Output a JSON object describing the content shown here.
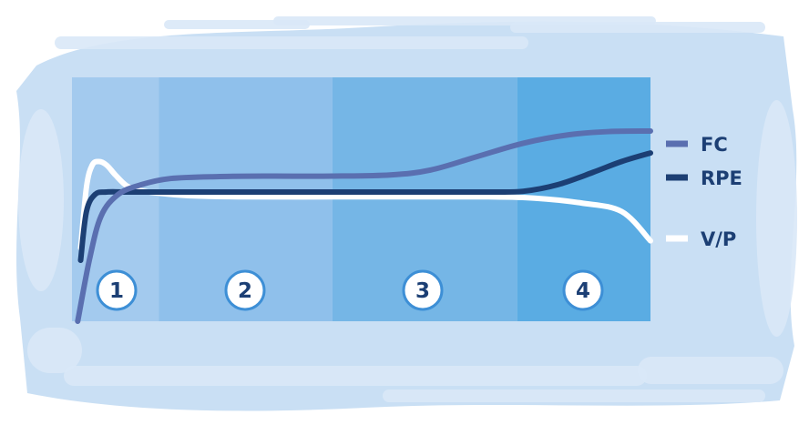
{
  "chart_data": {
    "type": "line",
    "title": "",
    "xlabel": "",
    "ylabel": "",
    "grid": false,
    "legend_placement": "right",
    "x_domain": [
      0,
      100
    ],
    "y_domain": [
      0,
      100
    ],
    "phases": [
      {
        "label": "1",
        "x_start": 0,
        "x_end": 15,
        "color": "#a3caee"
      },
      {
        "label": "2",
        "x_start": 15,
        "x_end": 45,
        "color": "#8fc0eb"
      },
      {
        "label": "3",
        "x_start": 45,
        "x_end": 77,
        "color": "#75b6e6"
      },
      {
        "label": "4",
        "x_start": 77,
        "x_end": 100,
        "color": "#5aace3"
      }
    ],
    "series": [
      {
        "name": "FC",
        "color": "#5a6fb0",
        "x": [
          1,
          3,
          5,
          8,
          12,
          17,
          25,
          35,
          45,
          55,
          62,
          70,
          78,
          86,
          93,
          100
        ],
        "y": [
          0,
          25,
          43,
          52,
          56,
          58.5,
          59.3,
          59.5,
          59.5,
          60,
          62,
          67.5,
          73,
          76.5,
          77.8,
          78
        ]
      },
      {
        "name": "RPE",
        "color": "#1c3f74",
        "x": [
          1.5,
          2.5,
          4,
          6,
          10,
          20,
          40,
          60,
          72,
          78,
          84,
          90,
          95,
          100
        ],
        "y": [
          25,
          45,
          52,
          53,
          53,
          53,
          53,
          53,
          53,
          53.3,
          56,
          61,
          65.5,
          69
        ]
      },
      {
        "name": "V/P",
        "color": "#ffffff",
        "x": [
          1.5,
          2.5,
          3.5,
          4.7,
          6,
          7.5,
          9.5,
          12,
          15,
          20,
          30,
          45,
          60,
          72,
          80,
          88,
          95,
          100
        ],
        "y": [
          30,
          55,
          64,
          65.5,
          64,
          60,
          55.5,
          53.5,
          52.5,
          51.5,
          51,
          51,
          51,
          51,
          50.5,
          48.5,
          45,
          33
        ]
      }
    ]
  },
  "colors": {
    "backdrop": "#c9dff4",
    "backdrop_light": "#d9e8f7",
    "badge_fill": "#ffffff",
    "badge_stroke": "#3d8fd6",
    "legend_text": "#1c3f74"
  }
}
